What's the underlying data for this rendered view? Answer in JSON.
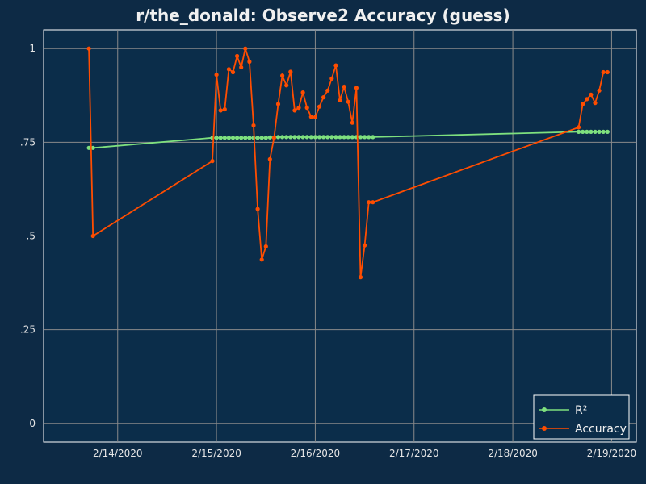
{
  "chart_data": {
    "type": "line",
    "title": "r/the_donald: Observe2 Accuracy (guess)",
    "xlabel": "",
    "ylabel": "",
    "x_ticks": [
      "2/14/2020",
      "2/15/2020",
      "2/16/2020",
      "2/17/2020",
      "2/18/2020",
      "2/19/2020"
    ],
    "y_ticks": [
      "0",
      ".25",
      ".5",
      ".75",
      "1"
    ],
    "ylim": [
      -0.05,
      1.05
    ],
    "xlim": [
      "2/13/2020 06:00",
      "2/19/2020 06:00"
    ],
    "grid": true,
    "legend_position": "bottom-right",
    "colors": {
      "background": "#0d2a45",
      "plot_background": "#0b2d4a",
      "grid": "#8a8a8a",
      "r2": "#7ee07e",
      "accuracy": "#ff4d00"
    },
    "series": [
      {
        "name": "R²",
        "x": [
          "2/13/2020 17:00",
          "2/13/2020 18:00",
          "2/14/2020 23:00",
          "2/15/2020 00:00",
          "2/15/2020 01:00",
          "2/15/2020 02:00",
          "2/15/2020 03:00",
          "2/15/2020 04:00",
          "2/15/2020 05:00",
          "2/15/2020 06:00",
          "2/15/2020 07:00",
          "2/15/2020 08:00",
          "2/15/2020 09:00",
          "2/15/2020 10:00",
          "2/15/2020 11:00",
          "2/15/2020 12:00",
          "2/15/2020 13:00",
          "2/15/2020 14:00",
          "2/15/2020 15:00",
          "2/15/2020 16:00",
          "2/15/2020 17:00",
          "2/15/2020 18:00",
          "2/15/2020 19:00",
          "2/15/2020 20:00",
          "2/15/2020 21:00",
          "2/15/2020 22:00",
          "2/15/2020 23:00",
          "2/16/2020 00:00",
          "2/16/2020 01:00",
          "2/16/2020 02:00",
          "2/16/2020 03:00",
          "2/16/2020 04:00",
          "2/16/2020 05:00",
          "2/16/2020 06:00",
          "2/16/2020 07:00",
          "2/16/2020 08:00",
          "2/16/2020 09:00",
          "2/16/2020 10:00",
          "2/16/2020 11:00",
          "2/16/2020 12:00",
          "2/16/2020 13:00",
          "2/16/2020 14:00",
          "2/18/2020 16:00",
          "2/18/2020 17:00",
          "2/18/2020 18:00",
          "2/18/2020 19:00",
          "2/18/2020 20:00",
          "2/18/2020 21:00",
          "2/18/2020 22:00",
          "2/18/2020 23:00"
        ],
        "values": [
          0.735,
          0.735,
          0.762,
          0.762,
          0.762,
          0.762,
          0.762,
          0.762,
          0.762,
          0.762,
          0.762,
          0.762,
          0.762,
          0.762,
          0.762,
          0.762,
          0.763,
          0.763,
          0.764,
          0.764,
          0.764,
          0.764,
          0.764,
          0.764,
          0.764,
          0.764,
          0.764,
          0.764,
          0.764,
          0.764,
          0.764,
          0.764,
          0.764,
          0.764,
          0.764,
          0.764,
          0.764,
          0.764,
          0.764,
          0.764,
          0.764,
          0.764,
          0.778,
          0.778,
          0.778,
          0.778,
          0.778,
          0.778,
          0.778,
          0.778
        ]
      },
      {
        "name": "Accuracy",
        "x": [
          "2/13/2020 17:00",
          "2/13/2020 18:00",
          "2/14/2020 23:00",
          "2/15/2020 00:00",
          "2/15/2020 01:00",
          "2/15/2020 02:00",
          "2/15/2020 03:00",
          "2/15/2020 04:00",
          "2/15/2020 05:00",
          "2/15/2020 06:00",
          "2/15/2020 07:00",
          "2/15/2020 08:00",
          "2/15/2020 09:00",
          "2/15/2020 10:00",
          "2/15/2020 11:00",
          "2/15/2020 12:00",
          "2/15/2020 13:00",
          "2/15/2020 14:00",
          "2/15/2020 15:00",
          "2/15/2020 16:00",
          "2/15/2020 17:00",
          "2/15/2020 18:00",
          "2/15/2020 19:00",
          "2/15/2020 20:00",
          "2/15/2020 21:00",
          "2/15/2020 22:00",
          "2/15/2020 23:00",
          "2/16/2020 00:00",
          "2/16/2020 01:00",
          "2/16/2020 02:00",
          "2/16/2020 03:00",
          "2/16/2020 04:00",
          "2/16/2020 05:00",
          "2/16/2020 06:00",
          "2/16/2020 07:00",
          "2/16/2020 08:00",
          "2/16/2020 09:00",
          "2/16/2020 10:00",
          "2/16/2020 11:00",
          "2/16/2020 12:00",
          "2/16/2020 13:00",
          "2/16/2020 14:00",
          "2/18/2020 16:00",
          "2/18/2020 17:00",
          "2/18/2020 18:00",
          "2/18/2020 19:00",
          "2/18/2020 20:00",
          "2/18/2020 21:00",
          "2/18/2020 22:00",
          "2/18/2020 23:00"
        ],
        "values": [
          1.0,
          0.5,
          0.7,
          0.93,
          0.835,
          0.838,
          0.945,
          0.937,
          0.98,
          0.95,
          1.0,
          0.965,
          0.795,
          0.572,
          0.437,
          0.472,
          0.705,
          0.762,
          0.852,
          0.928,
          0.902,
          0.938,
          0.835,
          0.842,
          0.883,
          0.842,
          0.818,
          0.817,
          0.845,
          0.87,
          0.888,
          0.92,
          0.955,
          0.862,
          0.898,
          0.858,
          0.802,
          0.895,
          0.39,
          0.475,
          0.59,
          0.59,
          0.79,
          0.852,
          0.865,
          0.877,
          0.855,
          0.888,
          0.937,
          0.937
        ]
      }
    ]
  }
}
